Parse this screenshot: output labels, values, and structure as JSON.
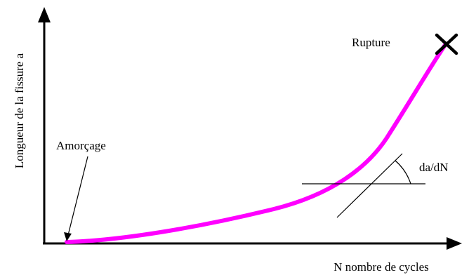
{
  "labels": {
    "y_axis": "Longueur de la fissure a",
    "x_axis": "N nombre de cycles",
    "initiation": "Amorçage",
    "rupture": "Rupture",
    "slope": "da/dN"
  },
  "colors": {
    "curve": "#ff00ff",
    "axes": "#000000",
    "text": "#000000"
  },
  "icons": {
    "rupture_marker": "cross-icon"
  }
}
